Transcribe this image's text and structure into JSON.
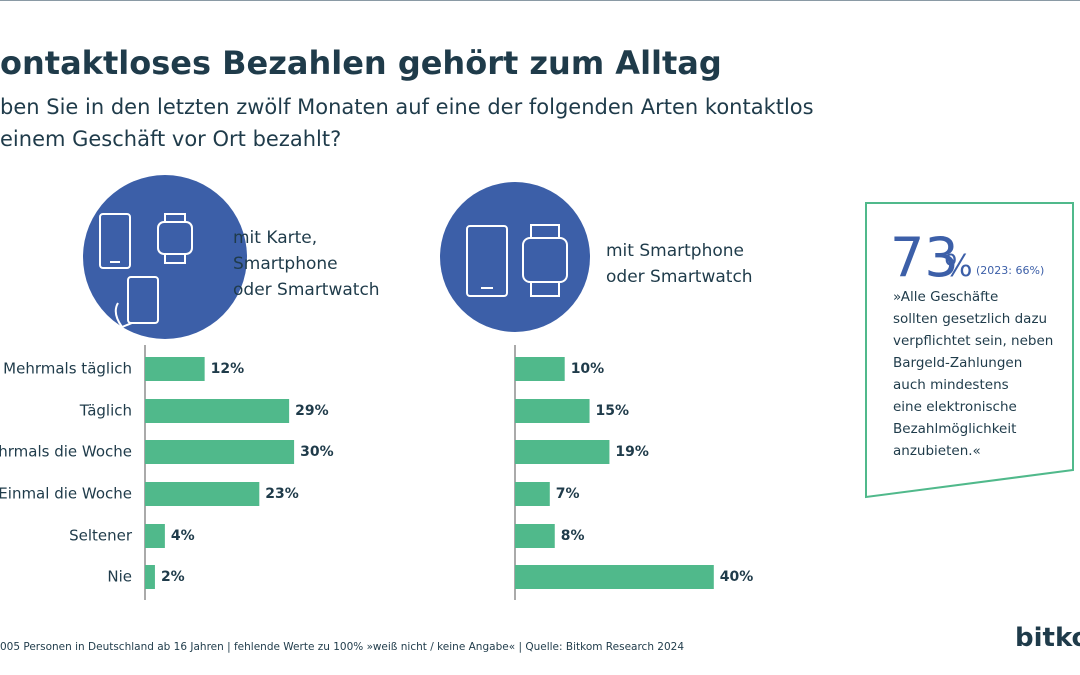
{
  "header": {
    "title": "ontaktloses Bezahlen gehört zum Alltag",
    "subtitle": [
      "ben Sie in den letzten zwölf Monaten auf eine der folgenden Arten kontaktlos",
      "einem Geschäft vor Ort bezahlt?"
    ]
  },
  "chart_data": [
    {
      "type": "bar",
      "orientation": "horizontal",
      "label": [
        "mit Karte,",
        "Smartphone",
        "oder Smartwatch"
      ],
      "categories": [
        "Mehrmals täglich",
        "Täglich",
        "ehrmals die Woche",
        "Einmal die Woche",
        "Seltener",
        "Nie"
      ],
      "values": [
        12,
        29,
        30,
        23,
        4,
        2
      ],
      "value_labels": [
        "12%",
        "29%",
        "30%",
        "23%",
        "4%",
        "2%"
      ],
      "color": "#50b98b"
    },
    {
      "type": "bar",
      "orientation": "horizontal",
      "label": [
        "mit Smartphone",
        "oder Smartwatch"
      ],
      "values": [
        10,
        15,
        19,
        7,
        8,
        40
      ],
      "value_labels": [
        "10%",
        "15%",
        "19%",
        "7%",
        "8%",
        "40%"
      ],
      "color": "#50b98b"
    }
  ],
  "callout": {
    "number": "73",
    "unit": "%",
    "comparison": "(2023: 66%)",
    "quote": [
      "»Alle Geschäfte",
      "sollten gesetzlich dazu",
      "verpflichtet sein, neben",
      "Bargeld-Zahlungen",
      "auch mindestens",
      "eine elektronische",
      "Bezahlmöglichkeit",
      "anzubieten.«"
    ]
  },
  "footer": "005 Personen in Deutschland ab 16 Jahren | fehlende Werte zu 100% »weiß nicht / keine Angabe« | Quelle: Bitkom Research 2024",
  "logo": "bitko"
}
